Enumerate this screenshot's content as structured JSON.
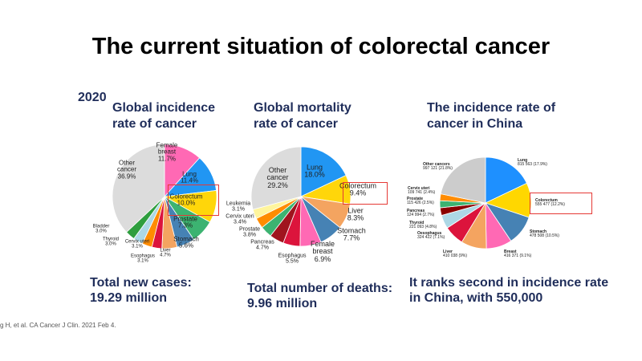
{
  "title": "The current situation of colorectal cancer",
  "year": "2020",
  "subtitles": [
    "Global incidence\nrate of cancer",
    "Global mortality\nrate of cancer",
    "The incidence rate of\ncancer in China"
  ],
  "bottom": [
    "Total new cases:\n19.29 million",
    "Total number of deaths:\n9.96 million",
    "It ranks second in incidence rate\nin China, with 550,000"
  ],
  "citation": "g H, et al. CA Cancer J Clin. 2021 Feb 4.",
  "chart_data": [
    {
      "type": "pie",
      "title": "Global incidence rate of cancer",
      "highlight": "Colorectum",
      "slices": [
        {
          "name": "Female\nbreast",
          "label": "11.7%",
          "value": 11.7,
          "color": "#ff69b4"
        },
        {
          "name": "Lung",
          "label": "11.4%",
          "value": 11.4,
          "color": "#2196f3"
        },
        {
          "name": "Colorectum",
          "label": "10.0%",
          "value": 10.0,
          "color": "#ffd60a"
        },
        {
          "name": "Prostate",
          "label": "7.3%",
          "value": 7.3,
          "color": "#3cb371"
        },
        {
          "name": "Stomach",
          "label": "5.6%",
          "value": 5.6,
          "color": "#4682b4"
        },
        {
          "name": "Liver",
          "label": "4.7%",
          "value": 4.7,
          "color": "#f4a460"
        },
        {
          "name": "Esophagus",
          "label": "3.1%",
          "value": 3.1,
          "color": "#dc143c"
        },
        {
          "name": "Cervix uteri",
          "label": "3.1%",
          "value": 3.1,
          "color": "#ff8c00"
        },
        {
          "name": "Thyroid",
          "label": "3.0%",
          "value": 3.0,
          "color": "#add8e6"
        },
        {
          "name": "Bladder",
          "label": "3.0%",
          "value": 3.0,
          "color": "#2e9e3e"
        },
        {
          "name": "Other\ncancer",
          "label": "36.9%",
          "value": 36.9,
          "color": "#dcdcdc"
        }
      ]
    },
    {
      "type": "pie",
      "title": "Global mortality rate of cancer",
      "highlight": "Colorectum",
      "slices": [
        {
          "name": "Lung",
          "label": "18.0%",
          "value": 18.0,
          "color": "#2196f3"
        },
        {
          "name": "Colorectum",
          "label": "9.4%",
          "value": 9.4,
          "color": "#ffd60a"
        },
        {
          "name": "Liver",
          "label": "8.3%",
          "value": 8.3,
          "color": "#f4a460"
        },
        {
          "name": "Stomach",
          "label": "7.7%",
          "value": 7.7,
          "color": "#4682b4"
        },
        {
          "name": "Female\nbreast",
          "label": "6.9%",
          "value": 6.9,
          "color": "#ff69b4"
        },
        {
          "name": "Esophagus",
          "label": "5.5%",
          "value": 5.5,
          "color": "#dc143c"
        },
        {
          "name": "Pancreas",
          "label": "4.7%",
          "value": 4.7,
          "color": "#a0141e"
        },
        {
          "name": "Prostate",
          "label": "3.8%",
          "value": 3.8,
          "color": "#3cb371"
        },
        {
          "name": "Cervix uteri",
          "label": "3.4%",
          "value": 3.4,
          "color": "#ff8c00"
        },
        {
          "name": "Leukemia",
          "label": "3.1%",
          "value": 3.1,
          "color": "#fff59d"
        },
        {
          "name": "Other\ncancer",
          "label": "29.2%",
          "value": 29.2,
          "color": "#dcdcdc"
        }
      ]
    },
    {
      "type": "pie",
      "title": "The incidence rate of cancer in China",
      "highlight": "Colorectum",
      "slices": [
        {
          "name": "Lung",
          "label": "815 563 (17.9%)",
          "value": 17.9,
          "color": "#1e90ff"
        },
        {
          "name": "Colorectum",
          "label": "555 477 (12.2%)",
          "value": 12.2,
          "color": "#ffd700"
        },
        {
          "name": "Stomach",
          "label": "478 508 (10.5%)",
          "value": 10.5,
          "color": "#4682b4"
        },
        {
          "name": "Breast",
          "label": "416 371 (9.1%)",
          "value": 9.1,
          "color": "#ff69b4"
        },
        {
          "name": "Liver",
          "label": "410 038 (9%)",
          "value": 9.0,
          "color": "#f4a460"
        },
        {
          "name": "Oesophagus",
          "label": "324 422 (7.1%)",
          "value": 7.1,
          "color": "#dc143c"
        },
        {
          "name": "Thyroid",
          "label": "221 093 (4.8%)",
          "value": 4.8,
          "color": "#add8e6"
        },
        {
          "name": "Pancreas",
          "label": "124 994 (2.7%)",
          "value": 2.7,
          "color": "#8b0000"
        },
        {
          "name": "Prostate",
          "label": "115 426 (2.5%)",
          "value": 2.5,
          "color": "#3cb371"
        },
        {
          "name": "Cervix uteri",
          "label": "109 741 (2.4%)",
          "value": 2.4,
          "color": "#ff8c00"
        },
        {
          "name": "Other cancers",
          "label": "997 121 (21.8%)",
          "value": 21.8,
          "color": "#cccccc"
        }
      ]
    }
  ]
}
